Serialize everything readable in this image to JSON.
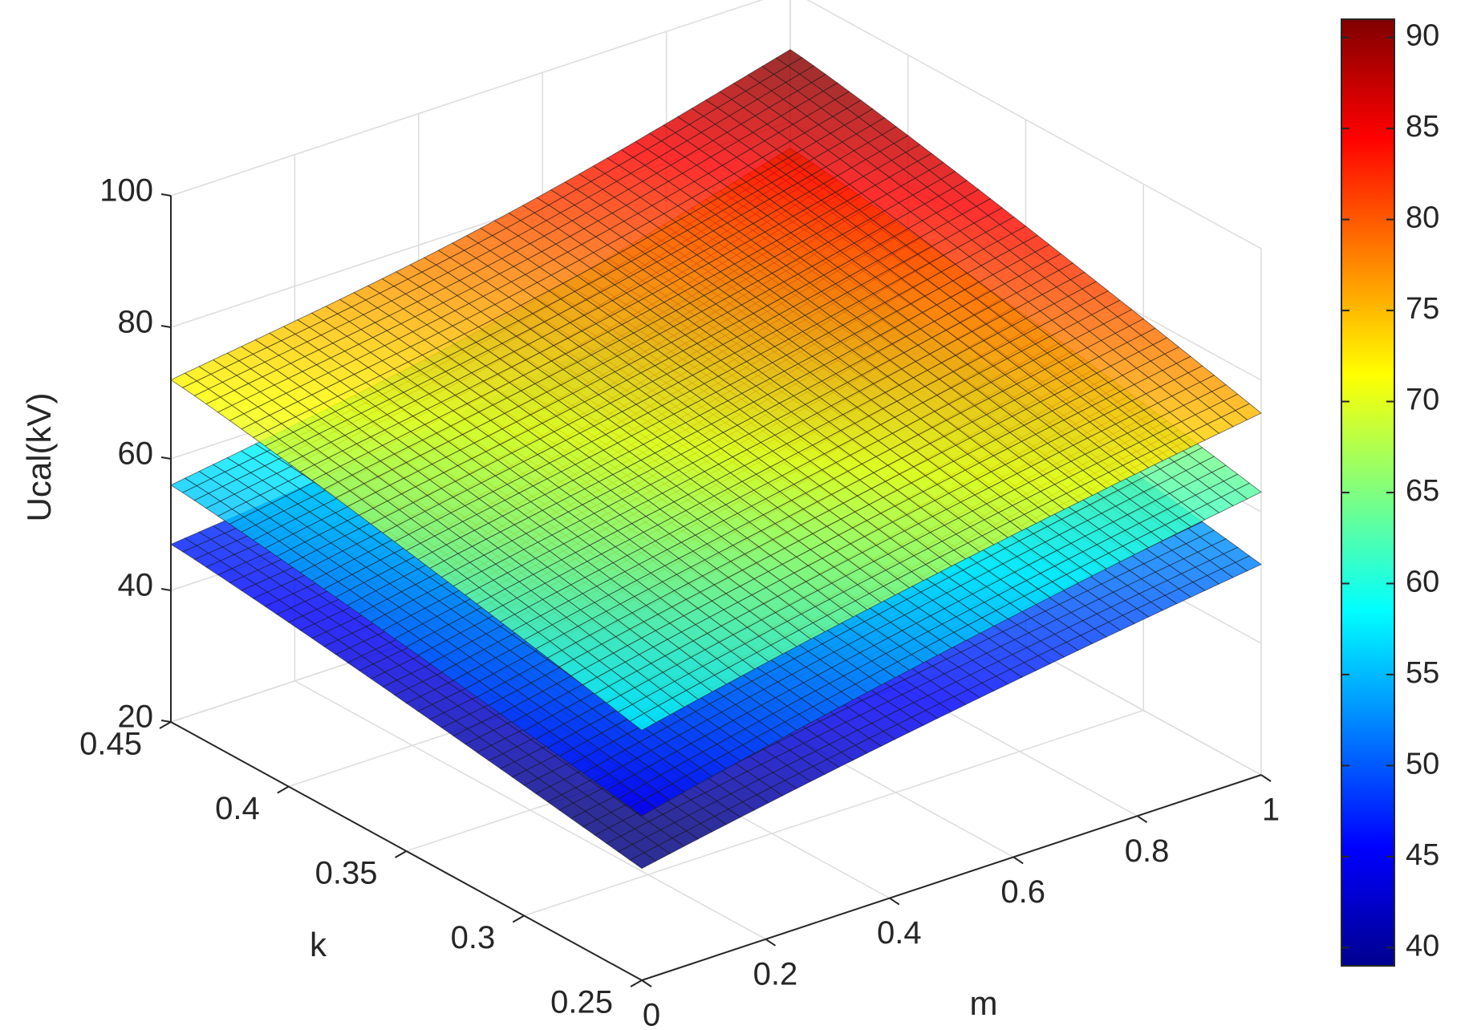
{
  "chart_data": {
    "type": "surface",
    "title": "",
    "xlabel": "m",
    "ylabel": "k",
    "zlabel": "Ucal(kV)",
    "x_ticks": [
      "0",
      "0.2",
      "0.4",
      "0.6",
      "0.8",
      "1"
    ],
    "y_ticks": [
      "0.25",
      "0.3",
      "0.35",
      "0.4",
      "0.45"
    ],
    "z_ticks": [
      "20",
      "40",
      "60",
      "80",
      "100"
    ],
    "xlim": [
      0,
      1
    ],
    "ylim": [
      0.25,
      0.45
    ],
    "zlim": [
      20,
      100
    ],
    "colorbar": {
      "colormap": "jet",
      "range": [
        39,
        91
      ],
      "ticks": [
        "40",
        "45",
        "50",
        "55",
        "60",
        "65",
        "70",
        "75",
        "80",
        "85",
        "90"
      ]
    },
    "grid": true,
    "series": [
      {
        "corners": {
          "m0_k045": 47,
          "m0_k025": 37,
          "m1_k045": 63,
          "m1_k025": 52
        }
      },
      {
        "corners": {
          "m0_k045": 56,
          "m0_k025": 45,
          "m1_k045": 76,
          "m1_k025": 63
        }
      },
      {
        "corners": {
          "m0_k045": 72,
          "m0_k025": 58,
          "m1_k045": 91,
          "m1_k025": 75
        }
      }
    ]
  }
}
